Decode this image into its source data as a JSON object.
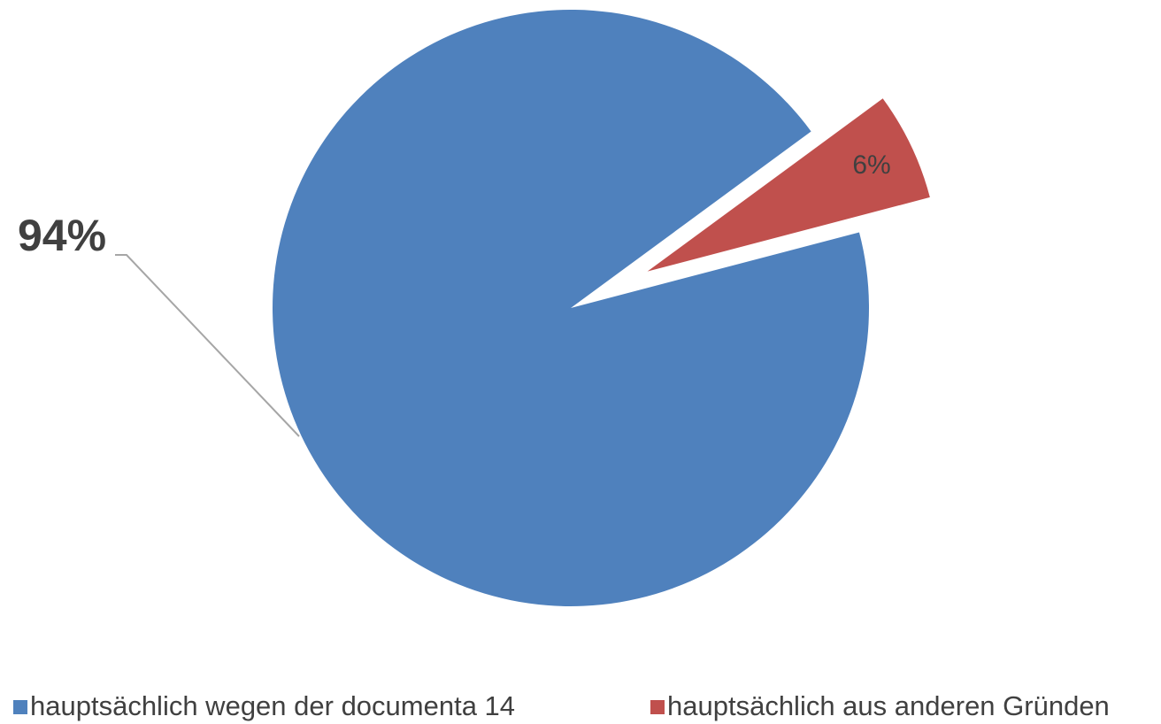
{
  "chart_data": {
    "type": "pie",
    "categories": [
      "hauptsächlich wegen der documenta 14",
      "hauptsächlich aus anderen Gründen"
    ],
    "values": [
      94,
      6
    ],
    "value_labels": [
      "94%",
      "6%"
    ],
    "colors": [
      "#4f81bd",
      "#c0504d"
    ],
    "legend": "bottom"
  }
}
